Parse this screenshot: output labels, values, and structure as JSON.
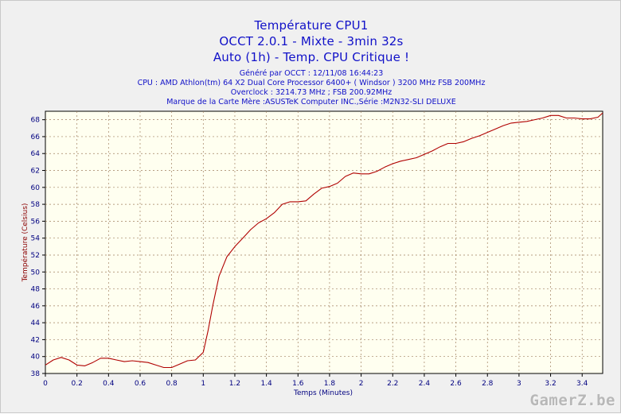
{
  "chart_data": {
    "type": "line",
    "title_lines": [
      "Température CPU1",
      "OCCT 2.0.1 - Mixte - 3min 32s",
      "Auto (1h) - Temp. CPU Critique !"
    ],
    "info_lines": [
      "Généré par OCCT : 12/11/08 16:44:23",
      "CPU : AMD Athlon(tm) 64 X2 Dual Core Processor 6400+ ( Windsor ) 3200 MHz FSB 200MHz",
      "Overclock : 3214.73 MHz ; FSB 200.92MHz",
      "Marque de la Carte Mère :ASUSTeK Computer INC.,Série :M2N32-SLI DELUXE"
    ],
    "xlabel": "Temps (Minutes)",
    "ylabel": "Température (Celsius)",
    "xlim": [
      0,
      3.53
    ],
    "ylim": [
      38,
      69
    ],
    "xticks": [
      "0",
      "0.2",
      "0.4",
      "0.6",
      "0.8",
      "1",
      "1.2",
      "1.4",
      "1.6",
      "1.8",
      "2",
      "2.2",
      "2.4",
      "2.6",
      "2.8",
      "3",
      "3.2",
      "3.4"
    ],
    "yticks": [
      "38",
      "40",
      "42",
      "44",
      "46",
      "48",
      "50",
      "52",
      "54",
      "56",
      "58",
      "60",
      "62",
      "64",
      "66",
      "68"
    ],
    "grid": true,
    "line_color": "#b00000",
    "series": [
      {
        "x": [
          0,
          0.05,
          0.1,
          0.15,
          0.2,
          0.25,
          0.3,
          0.35,
          0.4,
          0.45,
          0.5,
          0.55,
          0.6,
          0.65,
          0.7,
          0.75,
          0.8,
          0.85,
          0.9,
          0.95,
          1.0,
          1.03,
          1.06,
          1.1,
          1.15,
          1.2,
          1.25,
          1.3,
          1.35,
          1.4,
          1.45,
          1.5,
          1.55,
          1.6,
          1.65,
          1.7,
          1.75,
          1.8,
          1.85,
          1.9,
          1.95,
          2.0,
          2.05,
          2.1,
          2.15,
          2.2,
          2.25,
          2.3,
          2.35,
          2.4,
          2.45,
          2.5,
          2.55,
          2.6,
          2.65,
          2.7,
          2.75,
          2.8,
          2.85,
          2.9,
          2.95,
          3.0,
          3.05,
          3.1,
          3.15,
          3.2,
          3.25,
          3.3,
          3.35,
          3.4,
          3.45,
          3.5,
          3.53
        ],
        "values": [
          39.0,
          39.6,
          39.9,
          39.6,
          39.0,
          38.9,
          39.3,
          39.8,
          39.8,
          39.6,
          39.4,
          39.5,
          39.4,
          39.3,
          39.0,
          38.7,
          38.7,
          39.1,
          39.5,
          39.6,
          40.5,
          43.0,
          46.0,
          49.5,
          51.8,
          53.0,
          54.0,
          55.0,
          55.8,
          56.3,
          57.0,
          58.0,
          58.3,
          58.3,
          58.4,
          59.2,
          59.9,
          60.1,
          60.5,
          61.3,
          61.7,
          61.6,
          61.6,
          61.9,
          62.4,
          62.8,
          63.1,
          63.3,
          63.5,
          63.9,
          64.3,
          64.8,
          65.2,
          65.2,
          65.4,
          65.8,
          66.1,
          66.5,
          66.9,
          67.3,
          67.6,
          67.7,
          67.8,
          68.0,
          68.2,
          68.5,
          68.5,
          68.2,
          68.2,
          68.1,
          68.1,
          68.3,
          68.8
        ]
      }
    ]
  },
  "watermark": "GamerZ.be"
}
